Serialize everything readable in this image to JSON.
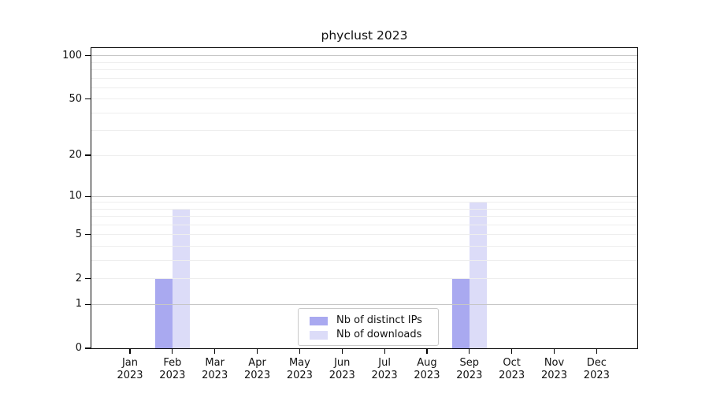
{
  "chart_data": {
    "type": "bar",
    "title": "phyclust 2023",
    "categories": [
      {
        "month": "Jan",
        "year": "2023"
      },
      {
        "month": "Feb",
        "year": "2023"
      },
      {
        "month": "Mar",
        "year": "2023"
      },
      {
        "month": "Apr",
        "year": "2023"
      },
      {
        "month": "May",
        "year": "2023"
      },
      {
        "month": "Jun",
        "year": "2023"
      },
      {
        "month": "Jul",
        "year": "2023"
      },
      {
        "month": "Aug",
        "year": "2023"
      },
      {
        "month": "Sep",
        "year": "2023"
      },
      {
        "month": "Oct",
        "year": "2023"
      },
      {
        "month": "Nov",
        "year": "2023"
      },
      {
        "month": "Dec",
        "year": "2023"
      }
    ],
    "series": [
      {
        "name": "Nb of distinct IPs",
        "color": "#a9a9f0",
        "values": [
          0,
          2,
          0,
          0,
          0,
          0,
          0,
          0,
          2,
          0,
          0,
          0
        ]
      },
      {
        "name": "Nb of downloads",
        "color": "#dcdcf8",
        "values": [
          0,
          8,
          0,
          0,
          0,
          0,
          0,
          0,
          9,
          0,
          0,
          0
        ]
      }
    ],
    "y_ticks": [
      0,
      1,
      2,
      5,
      10,
      20,
      50,
      100
    ],
    "y_scale": "log10(value+1)",
    "ylim": [
      0,
      113
    ],
    "grid": {
      "major_values": [
        1,
        10,
        100
      ],
      "minor_values": [
        2,
        3,
        4,
        5,
        6,
        7,
        8,
        9,
        20,
        30,
        40,
        50,
        60,
        70,
        80,
        90
      ],
      "major_color": "#c6c6c6",
      "minor_color": "#eeeeee"
    },
    "legend_position": "bottom-center"
  }
}
